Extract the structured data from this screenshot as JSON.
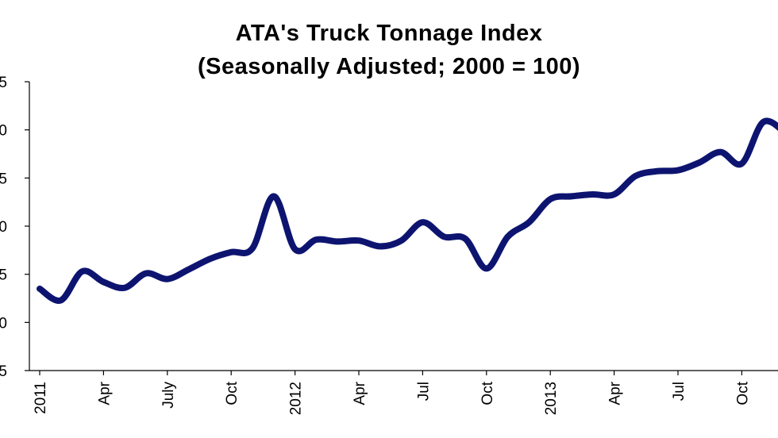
{
  "chart_data": {
    "type": "line",
    "title": "ATA's  Truck Tonnage Index",
    "subtitle": "(Seasonally Adjusted; 2000 = 100)",
    "xlabel": "",
    "ylabel": "",
    "y_tick_labels": [
      "5",
      "0",
      "5",
      "0",
      "5",
      "0",
      "5"
    ],
    "x_tick_labels": [
      "2011",
      "Apr",
      "July",
      "Oct",
      "2012",
      "Apr",
      "Jul",
      "Oct",
      "2013",
      "Apr",
      "Jul",
      "Oct"
    ],
    "grid": false,
    "legend": "none",
    "line_color": "#0d1470",
    "x": [
      "2011-01",
      "2011-02",
      "2011-03",
      "2011-04",
      "2011-05",
      "2011-06",
      "2011-07",
      "2011-08",
      "2011-09",
      "2011-10",
      "2011-11",
      "2011-12",
      "2012-01",
      "2012-02",
      "2012-03",
      "2012-04",
      "2012-05",
      "2012-06",
      "2012-07",
      "2012-08",
      "2012-09",
      "2012-10",
      "2012-11",
      "2012-12",
      "2013-01",
      "2013-02",
      "2013-03",
      "2013-04",
      "2013-05",
      "2013-06",
      "2013-07",
      "2013-08",
      "2013-09",
      "2013-10",
      "2013-11",
      "2013-12"
    ],
    "values": [
      113.5,
      112.3,
      115.3,
      114.2,
      113.6,
      115.1,
      114.5,
      115.5,
      116.6,
      117.3,
      117.7,
      123.1,
      117.6,
      118.6,
      118.4,
      118.5,
      117.9,
      118.5,
      120.4,
      118.9,
      118.7,
      115.6,
      118.9,
      120.4,
      122.8,
      123.1,
      123.3,
      123.3,
      125.2,
      125.7,
      125.8,
      126.6,
      127.7,
      126.5,
      130.8,
      129.8
    ],
    "y_gridline_count": 7
  }
}
